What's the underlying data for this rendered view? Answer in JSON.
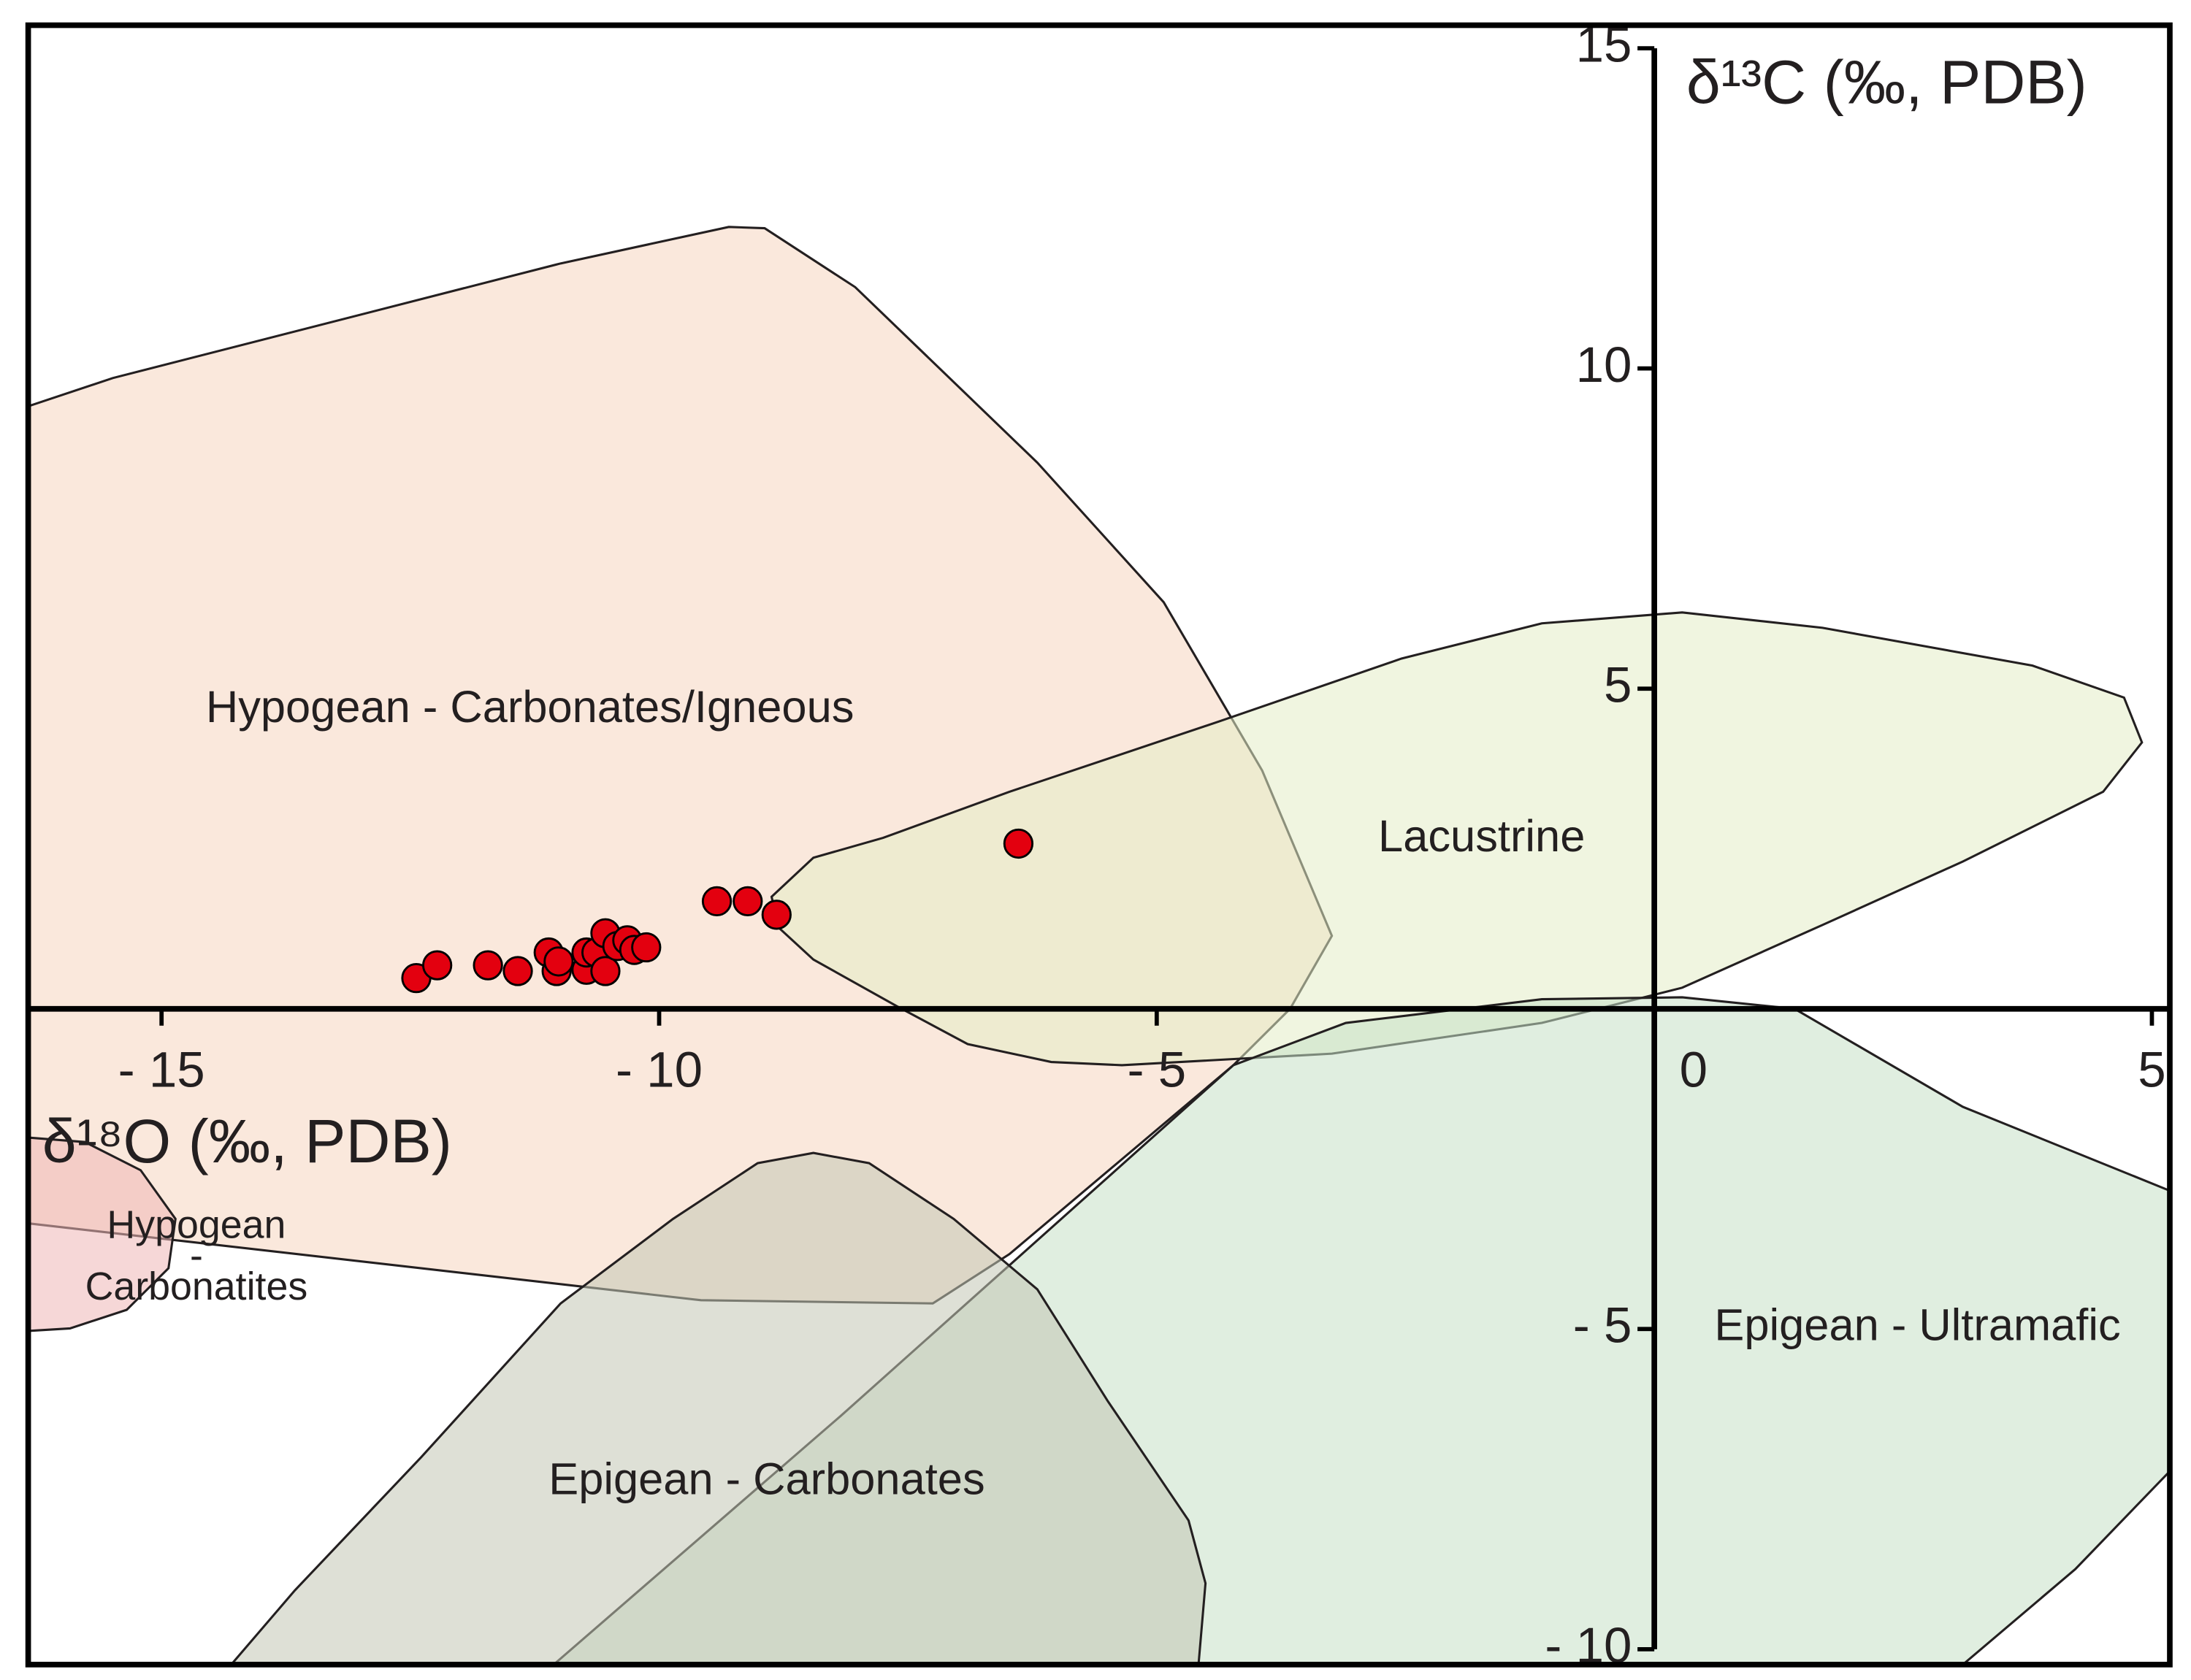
{
  "chart_data": {
    "type": "scatter",
    "x_label": "δ¹⁸O (‰, PDB)",
    "y_label": "δ¹³C (‰, PDB)",
    "xlim": [
      -16.34,
      5.18
    ],
    "ylim": [
      -10.24,
      15.36
    ],
    "xticks": [
      {
        "value": -15,
        "label": "- 15"
      },
      {
        "value": -10,
        "label": "- 10"
      },
      {
        "value": -5,
        "label": "- 5"
      },
      0,
      5
    ],
    "yticks": [
      {
        "value": -10,
        "label": "- 10"
      },
      {
        "value": -5,
        "label": "- 5"
      },
      5,
      10,
      15
    ],
    "color": "#e3000f",
    "x": [
      -12.44,
      -12.23,
      -11.72,
      -11.42,
      -11.11,
      -11.03,
      -11.01,
      -10.73,
      -10.73,
      -10.63,
      -10.54,
      -10.54,
      -10.42,
      -10.32,
      -10.25,
      -10.13,
      -9.42,
      -9.11,
      -8.82,
      -6.39
    ],
    "y": [
      0.48,
      0.68,
      0.68,
      0.59,
      0.88,
      0.59,
      0.74,
      0.61,
      0.88,
      0.88,
      0.59,
      1.18,
      0.98,
      1.07,
      0.92,
      0.96,
      1.68,
      1.68,
      1.47,
      2.58
    ],
    "regions": [
      {
        "label": [
          "Hypogean - Carbonates/Igneous"
        ],
        "color": "#f6d6bf",
        "x": [
          -16.34,
          -15.49,
          -10.99,
          -9.3,
          -8.94,
          -8.03,
          -6.2,
          -4.93,
          -3.94,
          -3.24,
          -3.66,
          -4.23,
          -6.48,
          -7.25,
          -9.58,
          -16.34
        ],
        "y": [
          9.41,
          9.85,
          11.64,
          12.21,
          12.19,
          11.27,
          8.53,
          6.35,
          3.72,
          1.14,
          0,
          -0.88,
          -3.83,
          -4.6,
          -4.55,
          -3.35
        ]
      },
      {
        "label": [
          "Lacustrine"
        ],
        "color": "#e3edc6",
        "x": [
          -8.87,
          -8.45,
          -7.75,
          -6.48,
          -4.37,
          -2.54,
          -1.13,
          0.28,
          1.69,
          3.8,
          4.72,
          4.9,
          4.51,
          3.1,
          1.69,
          0.28,
          -1.13,
          -3.24,
          -5.35,
          -6.06,
          -6.9,
          -7.61,
          -8.45,
          -8.8
        ],
        "y": [
          1.75,
          2.36,
          2.67,
          3.39,
          4.49,
          5.47,
          6.02,
          6.19,
          5.95,
          5.36,
          4.86,
          4.16,
          3.39,
          2.3,
          1.31,
          0.33,
          -0.22,
          -0.7,
          -0.88,
          -0.83,
          -0.55,
          0.04,
          0.77,
          1.27
        ]
      },
      {
        "label": [
          "Epigean - Ultramafic"
        ],
        "color": "#c6e0c6",
        "x": [
          -11.06,
          -8.17,
          -4.23,
          -3.1,
          -1.13,
          0.28,
          1.41,
          3.1,
          5.18,
          5.18,
          4.23,
          3.1
        ],
        "y": [
          -10.24,
          -6.35,
          -0.88,
          -0.22,
          0.15,
          0.18,
          0,
          -1.53,
          -2.84,
          -7.22,
          -8.75,
          -10.24
        ]
      },
      {
        "label": [
          "Epigean - Carbonates"
        ],
        "color": "#c2c7b4",
        "x": [
          -14.3,
          -13.66,
          -12.39,
          -10.99,
          -9.86,
          -9.01,
          -8.45,
          -7.89,
          -7.04,
          -6.2,
          -5.49,
          -4.68,
          -4.51,
          -4.58
        ],
        "y": [
          -10.24,
          -9.08,
          -7.0,
          -4.6,
          -3.28,
          -2.41,
          -2.25,
          -2.41,
          -3.28,
          -4.38,
          -6.13,
          -7.99,
          -8.97,
          -10.24
        ]
      },
      {
        "label": [
          "Hypogean",
          "-",
          "Carbonatites"
        ],
        "color": "#eeb7b7",
        "x": [
          -16.34,
          -15.77,
          -15.21,
          -14.86,
          -14.93,
          -15.35,
          -15.92,
          -16.34
        ],
        "y": [
          -2.01,
          -2.08,
          -2.52,
          -3.28,
          -4.05,
          -4.7,
          -4.99,
          -5.03
        ]
      }
    ]
  }
}
